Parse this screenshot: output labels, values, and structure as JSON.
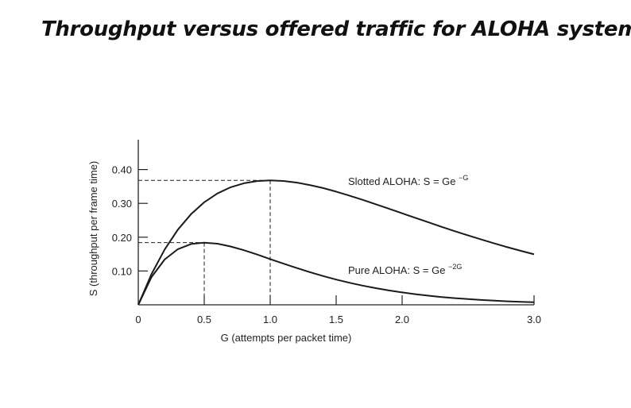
{
  "title": "Throughput versus offered traffic for ALOHA systems.",
  "colors": {
    "background": "#ffffff",
    "ink": "#222222",
    "curve": "#1a1a1a"
  },
  "chart_data": {
    "type": "line",
    "xlabel": "G (attempts per packet time)",
    "ylabel": "S (throughput per frame time)",
    "xlim": [
      0,
      3.0
    ],
    "ylim": [
      0,
      0.46
    ],
    "x_ticks": [
      {
        "value": 0,
        "label": "0"
      },
      {
        "value": 0.5,
        "label": "0.5"
      },
      {
        "value": 1.0,
        "label": "1.0"
      },
      {
        "value": 1.5,
        "label": "1.5"
      },
      {
        "value": 2.0,
        "label": "2.0"
      },
      {
        "value": 3.0,
        "label": "3.0"
      }
    ],
    "y_ticks": [
      {
        "value": 0.1,
        "label": "0.10"
      },
      {
        "value": 0.2,
        "label": "0.20"
      },
      {
        "value": 0.3,
        "label": "0.30"
      },
      {
        "value": 0.4,
        "label": "0.40"
      }
    ],
    "series": [
      {
        "name": "Slotted ALOHA",
        "formula": "S = Ge^-G",
        "label_text": "Slotted ALOHA: S = Ge",
        "label_sup": "−G",
        "x": [
          0,
          0.1,
          0.2,
          0.3,
          0.4,
          0.5,
          0.6,
          0.7,
          0.8,
          0.9,
          1.0,
          1.1,
          1.2,
          1.3,
          1.4,
          1.5,
          1.6,
          1.7,
          1.8,
          1.9,
          2.0,
          2.1,
          2.2,
          2.3,
          2.4,
          2.5,
          2.6,
          2.7,
          2.8,
          2.9,
          3.0
        ],
        "y": [
          0,
          0.0905,
          0.1637,
          0.2222,
          0.2681,
          0.3033,
          0.3293,
          0.3476,
          0.3595,
          0.3659,
          0.3679,
          0.3662,
          0.3614,
          0.3543,
          0.3452,
          0.3347,
          0.323,
          0.3106,
          0.2975,
          0.2842,
          0.2707,
          0.2572,
          0.2438,
          0.2306,
          0.2177,
          0.2052,
          0.1931,
          0.1815,
          0.1703,
          0.1596,
          0.1494
        ],
        "peak": {
          "x": 1.0,
          "y": 0.368
        }
      },
      {
        "name": "Pure ALOHA",
        "formula": "S = Ge^-2G",
        "label_text": "Pure ALOHA: S = Ge",
        "label_sup": "−2G",
        "x": [
          0,
          0.1,
          0.2,
          0.3,
          0.4,
          0.5,
          0.6,
          0.7,
          0.8,
          0.9,
          1.0,
          1.1,
          1.2,
          1.3,
          1.4,
          1.5,
          1.6,
          1.7,
          1.8,
          1.9,
          2.0,
          2.1,
          2.2,
          2.3,
          2.4,
          2.5,
          2.6,
          2.7,
          2.8,
          2.9,
          3.0
        ],
        "y": [
          0,
          0.0819,
          0.1341,
          0.1646,
          0.1797,
          0.1839,
          0.1807,
          0.1726,
          0.1615,
          0.1488,
          0.1353,
          0.1219,
          0.1089,
          0.0966,
          0.0852,
          0.0747,
          0.0652,
          0.0567,
          0.0492,
          0.0425,
          0.0366,
          0.0314,
          0.027,
          0.0231,
          0.0198,
          0.0168,
          0.0143,
          0.0122,
          0.0104,
          0.0088,
          0.0074
        ],
        "peak": {
          "x": 0.5,
          "y": 0.184
        }
      }
    ],
    "annotations": [
      "Slotted ALOHA: S = Ge^-G",
      "Pure ALOHA: S = Ge^-2G"
    ],
    "grid": false
  }
}
